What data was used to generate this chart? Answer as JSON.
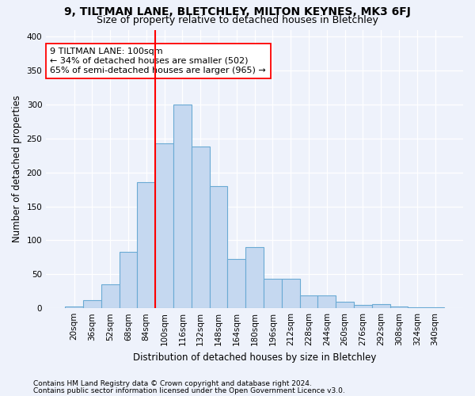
{
  "title1": "9, TILTMAN LANE, BLETCHLEY, MILTON KEYNES, MK3 6FJ",
  "title2": "Size of property relative to detached houses in Bletchley",
  "xlabel": "Distribution of detached houses by size in Bletchley",
  "ylabel": "Number of detached properties",
  "footnote1": "Contains HM Land Registry data © Crown copyright and database right 2024.",
  "footnote2": "Contains public sector information licensed under the Open Government Licence v3.0.",
  "categories": [
    "20sqm",
    "36sqm",
    "52sqm",
    "68sqm",
    "84sqm",
    "100sqm",
    "116sqm",
    "132sqm",
    "148sqm",
    "164sqm",
    "180sqm",
    "196sqm",
    "212sqm",
    "228sqm",
    "244sqm",
    "260sqm",
    "276sqm",
    "292sqm",
    "308sqm",
    "324sqm",
    "340sqm"
  ],
  "values": [
    3,
    12,
    35,
    83,
    185,
    243,
    300,
    238,
    180,
    73,
    90,
    43,
    43,
    19,
    19,
    10,
    5,
    6,
    2,
    1,
    1
  ],
  "bar_color": "#c5d8f0",
  "bar_edge_color": "#6aaad4",
  "highlight_x": "100sqm",
  "highlight_line_color": "red",
  "annotation_line1": "9 TILTMAN LANE: 100sqm",
  "annotation_line2": "← 34% of detached houses are smaller (502)",
  "annotation_line3": "65% of semi-detached houses are larger (965) →",
  "annotation_box_color": "white",
  "annotation_box_edge": "red",
  "ylim": [
    0,
    410
  ],
  "yticks": [
    0,
    50,
    100,
    150,
    200,
    250,
    300,
    350,
    400
  ],
  "bg_color": "#eef2fb",
  "grid_color": "white",
  "title1_fontsize": 10,
  "title2_fontsize": 9,
  "axis_label_fontsize": 8.5,
  "tick_fontsize": 7.5,
  "annotation_fontsize": 8,
  "footnote_fontsize": 6.5
}
